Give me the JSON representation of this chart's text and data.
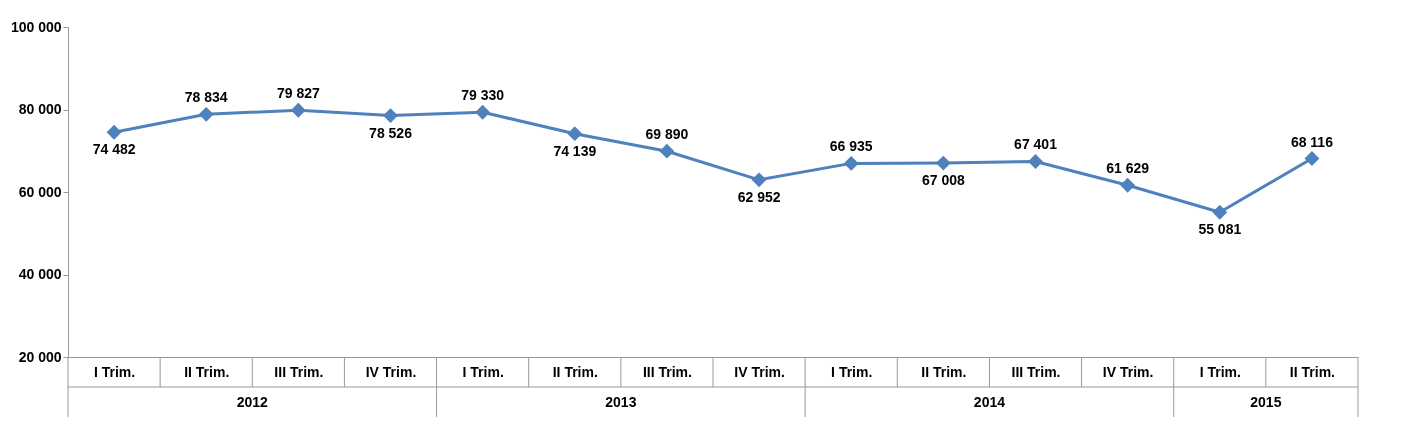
{
  "chart_data": {
    "type": "line",
    "categories": [
      "I Trim.",
      "II Trim.",
      "III Trim.",
      "IV Trim.",
      "I Trim.",
      "II Trim.",
      "III Trim.",
      "IV Trim.",
      "I Trim.",
      "II Trim.",
      "III Trim.",
      "IV Trim.",
      "I Trim.",
      "II Trim."
    ],
    "series": [
      {
        "color": "#4f81bd",
        "values": [
          74482,
          78834,
          79827,
          78526,
          79330,
          74139,
          69890,
          62952,
          66935,
          67008,
          67401,
          61629,
          55081,
          68116
        ]
      }
    ],
    "ylim": [
      20000,
      100000
    ],
    "yticks": [
      {
        "value": 20000,
        "label": "20 000"
      },
      {
        "value": 40000,
        "label": "40 000"
      },
      {
        "value": 60000,
        "label": "60 000"
      },
      {
        "value": 80000,
        "label": "80 000"
      },
      {
        "value": 100000,
        "label": "100 000"
      }
    ],
    "annotations": [
      "2012",
      "2013",
      "2014",
      "2015"
    ],
    "data_labels": true,
    "marker": "diamond",
    "line_style": "solid",
    "grid": false
  }
}
